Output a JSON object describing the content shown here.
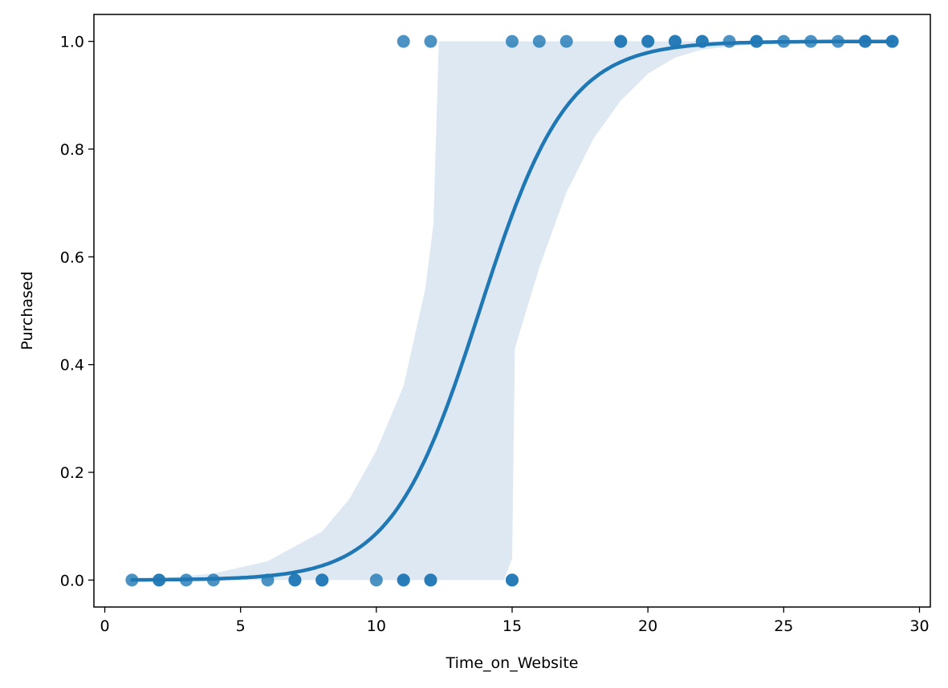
{
  "chart_data": {
    "type": "scatter",
    "title": "",
    "xlabel": "Time_on_Website",
    "ylabel": "Purchased",
    "xlim": [
      -0.4,
      30.4
    ],
    "ylim": [
      -0.05,
      1.05
    ],
    "xticks": [
      0,
      5,
      10,
      15,
      20,
      25,
      30
    ],
    "xtick_labels": [
      "0",
      "5",
      "10",
      "15",
      "20",
      "25",
      "30"
    ],
    "yticks": [
      0.0,
      0.2,
      0.4,
      0.6,
      0.8,
      1.0
    ],
    "ytick_labels": [
      "0.0",
      "0.2",
      "0.4",
      "0.6",
      "0.8",
      "1.0"
    ],
    "grid": false,
    "colors": {
      "points": "#1f77b4",
      "fit_line": "#1f77b4",
      "confidence_band": "#dde8f3"
    },
    "points": [
      {
        "x": 1,
        "y": 0
      },
      {
        "x": 2,
        "y": 0
      },
      {
        "x": 2,
        "y": 0
      },
      {
        "x": 3,
        "y": 0
      },
      {
        "x": 4,
        "y": 0
      },
      {
        "x": 6,
        "y": 0
      },
      {
        "x": 7,
        "y": 0
      },
      {
        "x": 7,
        "y": 0
      },
      {
        "x": 8,
        "y": 0
      },
      {
        "x": 8,
        "y": 0
      },
      {
        "x": 10,
        "y": 0
      },
      {
        "x": 11,
        "y": 0
      },
      {
        "x": 11,
        "y": 0
      },
      {
        "x": 12,
        "y": 0
      },
      {
        "x": 12,
        "y": 0
      },
      {
        "x": 15,
        "y": 0
      },
      {
        "x": 15,
        "y": 0
      },
      {
        "x": 11,
        "y": 1
      },
      {
        "x": 12,
        "y": 1
      },
      {
        "x": 15,
        "y": 1
      },
      {
        "x": 16,
        "y": 1
      },
      {
        "x": 17,
        "y": 1
      },
      {
        "x": 19,
        "y": 1
      },
      {
        "x": 19,
        "y": 1
      },
      {
        "x": 20,
        "y": 1
      },
      {
        "x": 20,
        "y": 1
      },
      {
        "x": 21,
        "y": 1
      },
      {
        "x": 21,
        "y": 1
      },
      {
        "x": 22,
        "y": 1
      },
      {
        "x": 22,
        "y": 1
      },
      {
        "x": 23,
        "y": 1
      },
      {
        "x": 24,
        "y": 1
      },
      {
        "x": 24,
        "y": 1
      },
      {
        "x": 25,
        "y": 1
      },
      {
        "x": 26,
        "y": 1
      },
      {
        "x": 27,
        "y": 1
      },
      {
        "x": 28,
        "y": 1
      },
      {
        "x": 28,
        "y": 1
      },
      {
        "x": 29,
        "y": 1
      },
      {
        "x": 29,
        "y": 1
      }
    ],
    "fit": {
      "model": "logistic",
      "x_range": [
        1,
        29
      ],
      "midpoint": 13.8,
      "slope": 0.62
    },
    "confidence_band": {
      "upper": [
        [
          1,
          0.0
        ],
        [
          2,
          0.003
        ],
        [
          4,
          0.012
        ],
        [
          6,
          0.035
        ],
        [
          8,
          0.09
        ],
        [
          9,
          0.15
        ],
        [
          10,
          0.24
        ],
        [
          11,
          0.36
        ],
        [
          11.8,
          0.54
        ],
        [
          12.1,
          0.66
        ],
        [
          12.3,
          1.0
        ],
        [
          29,
          1.0
        ]
      ],
      "lower": [
        [
          1,
          0.0
        ],
        [
          14.7,
          0.0
        ],
        [
          15.0,
          0.04
        ],
        [
          15.1,
          0.43
        ],
        [
          16,
          0.58
        ],
        [
          17,
          0.72
        ],
        [
          18,
          0.82
        ],
        [
          19,
          0.89
        ],
        [
          20,
          0.94
        ],
        [
          21,
          0.97
        ],
        [
          22,
          0.985
        ],
        [
          24,
          0.995
        ],
        [
          29,
          1.0
        ]
      ]
    }
  }
}
